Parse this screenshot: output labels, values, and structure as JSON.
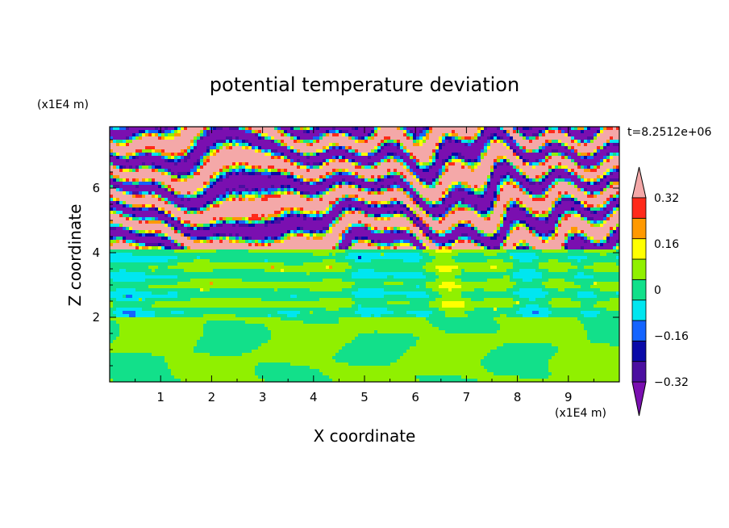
{
  "chart_data": {
    "type": "heatmap",
    "title": "potential temperature deviation",
    "xlabel": "X coordinate",
    "ylabel": "Z coordinate",
    "x_unit": "(x1E4 m)",
    "y_unit": "(x1E4 m)",
    "time_label": "t=8.2512e+06",
    "xlim": [
      0,
      10
    ],
    "ylim": [
      0,
      7.9
    ],
    "x_ticks": [
      1,
      2,
      3,
      4,
      5,
      6,
      7,
      8,
      9
    ],
    "y_ticks": [
      2,
      4,
      6
    ],
    "colorbar": {
      "levels": [
        -0.4,
        -0.32,
        -0.24,
        -0.16,
        -0.08,
        0,
        0.08,
        0.16,
        0.24,
        0.32,
        0.4
      ],
      "tick_labels": [
        "0.32",
        "0.16",
        "0",
        "−0.16",
        "−0.32"
      ],
      "tick_values": [
        0.32,
        0.16,
        0,
        -0.16,
        -0.32
      ],
      "colors": [
        "#7a0fb0",
        "#4b0fa0",
        "#0a0aa8",
        "#1464ff",
        "#00e6f0",
        "#12e08a",
        "#90f000",
        "#ffff00",
        "#ff9900",
        "#ff2a1a",
        "#f4a8a8"
      ],
      "extend": "both"
    },
    "bands": [
      {
        "z_range": [
          0,
          2.0
        ],
        "value": "0 to 0.08",
        "note": "lower layer dominated by 0 to 0.08 with blobs of -0.08 to 0"
      },
      {
        "z_range": [
          2.0,
          4.1
        ],
        "value": "-0.08 to 0.08",
        "note": "stratified middle layer"
      },
      {
        "z_range": [
          4.1,
          7.9
        ],
        "value": "below -0.4 and above 0.4",
        "note": "alternating extreme layers"
      }
    ]
  }
}
